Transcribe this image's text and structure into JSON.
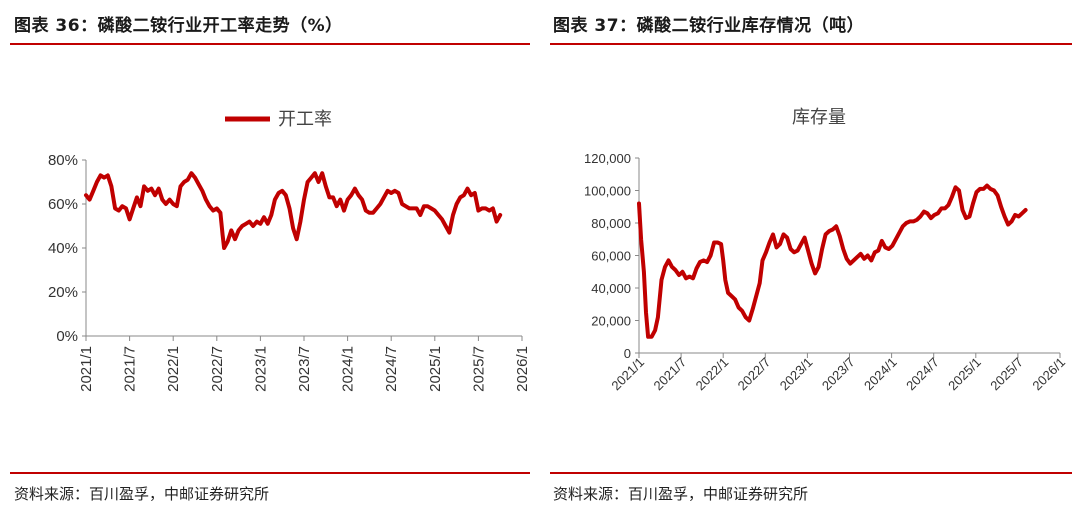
{
  "left_panel": {
    "title": "图表 36：磷酸二铵行业开工率走势（%）",
    "source": "资料来源：百川盈孚，中邮证券研究所"
  },
  "right_panel": {
    "title": "图表 37：磷酸二铵行业库存情况（吨）",
    "source": "资料来源：百川盈孚，中邮证券研究所"
  },
  "colors": {
    "accent": "#c00000",
    "line": "#c00000",
    "axis": "#888888"
  },
  "chart_data": [
    {
      "type": "line",
      "legend": "开工率",
      "legend_position": "top",
      "ylim": [
        0,
        0.8
      ],
      "yticks": [
        "0%",
        "20%",
        "40%",
        "60%",
        "80%"
      ],
      "xticks": [
        "2021/1",
        "2021/7",
        "2022/1",
        "2022/7",
        "2023/1",
        "2023/7",
        "2024/1",
        "2024/7",
        "2025/1",
        "2025/7",
        "2026/1"
      ],
      "x_range": [
        0,
        60
      ],
      "series": [
        {
          "name": "开工率",
          "points": [
            [
              0,
              0.64
            ],
            [
              0.5,
              0.62
            ],
            [
              1,
              0.66
            ],
            [
              1.5,
              0.7
            ],
            [
              2,
              0.73
            ],
            [
              2.5,
              0.72
            ],
            [
              3,
              0.73
            ],
            [
              3.5,
              0.68
            ],
            [
              4,
              0.58
            ],
            [
              4.5,
              0.57
            ],
            [
              5,
              0.59
            ],
            [
              5.5,
              0.58
            ],
            [
              6,
              0.53
            ],
            [
              6.5,
              0.58
            ],
            [
              7,
              0.63
            ],
            [
              7.5,
              0.59
            ],
            [
              8,
              0.68
            ],
            [
              8.5,
              0.66
            ],
            [
              9,
              0.67
            ],
            [
              9.5,
              0.64
            ],
            [
              10,
              0.67
            ],
            [
              10.5,
              0.62
            ],
            [
              11,
              0.6
            ],
            [
              11.5,
              0.62
            ],
            [
              12,
              0.6
            ],
            [
              12.5,
              0.59
            ],
            [
              13,
              0.68
            ],
            [
              13.5,
              0.7
            ],
            [
              14,
              0.71
            ],
            [
              14.5,
              0.74
            ],
            [
              15,
              0.72
            ],
            [
              15.5,
              0.69
            ],
            [
              16,
              0.66
            ],
            [
              16.5,
              0.62
            ],
            [
              17,
              0.59
            ],
            [
              17.5,
              0.57
            ],
            [
              18,
              0.58
            ],
            [
              18.5,
              0.56
            ],
            [
              18.8,
              0.46
            ],
            [
              19,
              0.4
            ],
            [
              19.5,
              0.43
            ],
            [
              20,
              0.48
            ],
            [
              20.5,
              0.44
            ],
            [
              21,
              0.48
            ],
            [
              21.5,
              0.5
            ],
            [
              22,
              0.51
            ],
            [
              22.5,
              0.52
            ],
            [
              23,
              0.5
            ],
            [
              23.5,
              0.52
            ],
            [
              24,
              0.51
            ],
            [
              24.5,
              0.54
            ],
            [
              25,
              0.51
            ],
            [
              25.5,
              0.55
            ],
            [
              26,
              0.62
            ],
            [
              26.5,
              0.65
            ],
            [
              27,
              0.66
            ],
            [
              27.5,
              0.64
            ],
            [
              28,
              0.58
            ],
            [
              28.5,
              0.49
            ],
            [
              29,
              0.44
            ],
            [
              29.5,
              0.52
            ],
            [
              30,
              0.62
            ],
            [
              30.5,
              0.7
            ],
            [
              31,
              0.72
            ],
            [
              31.5,
              0.74
            ],
            [
              32,
              0.7
            ],
            [
              32.5,
              0.74
            ],
            [
              33,
              0.68
            ],
            [
              33.5,
              0.63
            ],
            [
              34,
              0.63
            ],
            [
              34.5,
              0.59
            ],
            [
              35,
              0.62
            ],
            [
              35.5,
              0.57
            ],
            [
              36,
              0.62
            ],
            [
              36.5,
              0.64
            ],
            [
              37,
              0.67
            ],
            [
              37.5,
              0.64
            ],
            [
              38,
              0.62
            ],
            [
              38.5,
              0.57
            ],
            [
              39,
              0.56
            ],
            [
              39.5,
              0.56
            ],
            [
              40,
              0.58
            ],
            [
              40.5,
              0.6
            ],
            [
              41,
              0.63
            ],
            [
              41.5,
              0.66
            ],
            [
              42,
              0.65
            ],
            [
              42.5,
              0.66
            ],
            [
              43,
              0.65
            ],
            [
              43.5,
              0.6
            ],
            [
              44,
              0.59
            ],
            [
              44.5,
              0.58
            ],
            [
              45,
              0.58
            ],
            [
              45.5,
              0.58
            ],
            [
              46,
              0.55
            ],
            [
              46.5,
              0.59
            ],
            [
              47,
              0.59
            ],
            [
              47.5,
              0.58
            ],
            [
              48,
              0.57
            ],
            [
              48.5,
              0.55
            ],
            [
              49,
              0.53
            ],
            [
              49.5,
              0.5
            ],
            [
              50,
              0.47
            ],
            [
              50.5,
              0.55
            ],
            [
              51,
              0.6
            ],
            [
              51.5,
              0.63
            ],
            [
              52,
              0.64
            ],
            [
              52.5,
              0.67
            ],
            [
              53,
              0.64
            ],
            [
              53.5,
              0.65
            ],
            [
              54,
              0.57
            ],
            [
              54.5,
              0.58
            ],
            [
              55,
              0.58
            ],
            [
              55.5,
              0.57
            ],
            [
              56,
              0.58
            ],
            [
              56.5,
              0.52
            ],
            [
              57,
              0.55
            ]
          ]
        }
      ]
    },
    {
      "type": "line",
      "title": "库存量",
      "ylim": [
        0,
        120000
      ],
      "yticks": [
        "0",
        "20,000",
        "40,000",
        "60,000",
        "80,000",
        "100,000",
        "120,000"
      ],
      "xticks": [
        "2021/1",
        "2021/7",
        "2022/1",
        "2022/7",
        "2023/1",
        "2023/7",
        "2024/1",
        "2024/7",
        "2025/1",
        "2025/7",
        "2026/1"
      ],
      "x_range": [
        0,
        60
      ],
      "series": [
        {
          "name": "库存量",
          "points": [
            [
              0,
              92000
            ],
            [
              0.3,
              70000
            ],
            [
              0.7,
              50000
            ],
            [
              1,
              25000
            ],
            [
              1.3,
              10000
            ],
            [
              1.8,
              10000
            ],
            [
              2.3,
              14000
            ],
            [
              2.7,
              22000
            ],
            [
              3.2,
              45000
            ],
            [
              3.7,
              53000
            ],
            [
              4.2,
              57000
            ],
            [
              4.7,
              53000
            ],
            [
              5.2,
              51000
            ],
            [
              5.7,
              48000
            ],
            [
              6.2,
              50000
            ],
            [
              6.7,
              46000
            ],
            [
              7.2,
              47000
            ],
            [
              7.7,
              46000
            ],
            [
              8.2,
              52000
            ],
            [
              8.7,
              56000
            ],
            [
              9.2,
              57000
            ],
            [
              9.7,
              56000
            ],
            [
              10.2,
              60000
            ],
            [
              10.7,
              68000
            ],
            [
              11.2,
              68000
            ],
            [
              11.7,
              67000
            ],
            [
              12,
              57000
            ],
            [
              12.3,
              45000
            ],
            [
              12.7,
              37000
            ],
            [
              13.2,
              35000
            ],
            [
              13.7,
              33000
            ],
            [
              14.2,
              28000
            ],
            [
              14.7,
              26000
            ],
            [
              15.2,
              22000
            ],
            [
              15.7,
              20000
            ],
            [
              16.2,
              27000
            ],
            [
              16.7,
              35000
            ],
            [
              17.2,
              43000
            ],
            [
              17.6,
              57000
            ],
            [
              18.1,
              62000
            ],
            [
              18.6,
              68000
            ],
            [
              19.1,
              73000
            ],
            [
              19.6,
              65000
            ],
            [
              20.1,
              67000
            ],
            [
              20.6,
              73000
            ],
            [
              21.1,
              71000
            ],
            [
              21.6,
              64000
            ],
            [
              22.1,
              62000
            ],
            [
              22.6,
              63000
            ],
            [
              23.1,
              67000
            ],
            [
              23.6,
              71000
            ],
            [
              24.1,
              63000
            ],
            [
              24.6,
              55000
            ],
            [
              25.1,
              49000
            ],
            [
              25.6,
              53000
            ],
            [
              26.1,
              64000
            ],
            [
              26.6,
              73000
            ],
            [
              27.1,
              75000
            ],
            [
              27.6,
              76000
            ],
            [
              28.1,
              78000
            ],
            [
              28.6,
              72000
            ],
            [
              29.1,
              64000
            ],
            [
              29.6,
              58000
            ],
            [
              30.1,
              55000
            ],
            [
              30.6,
              57000
            ],
            [
              31.1,
              59000
            ],
            [
              31.6,
              61000
            ],
            [
              32.1,
              58000
            ],
            [
              32.6,
              60000
            ],
            [
              33.1,
              57000
            ],
            [
              33.6,
              62000
            ],
            [
              34.1,
              63000
            ],
            [
              34.6,
              69000
            ],
            [
              35.1,
              65000
            ],
            [
              35.6,
              64000
            ],
            [
              36.1,
              66000
            ],
            [
              36.6,
              70000
            ],
            [
              37.1,
              74000
            ],
            [
              37.6,
              78000
            ],
            [
              38.1,
              80000
            ],
            [
              38.6,
              81000
            ],
            [
              39.1,
              81000
            ],
            [
              39.6,
              82000
            ],
            [
              40.1,
              84000
            ],
            [
              40.6,
              87000
            ],
            [
              41.1,
              86000
            ],
            [
              41.6,
              83000
            ],
            [
              42.1,
              85000
            ],
            [
              42.6,
              86000
            ],
            [
              43.1,
              89000
            ],
            [
              43.6,
              89000
            ],
            [
              44.1,
              91000
            ],
            [
              44.6,
              96000
            ],
            [
              45.1,
              102000
            ],
            [
              45.6,
              100000
            ],
            [
              46.1,
              88000
            ],
            [
              46.6,
              83000
            ],
            [
              47.1,
              84000
            ],
            [
              47.6,
              92000
            ],
            [
              48.1,
              99000
            ],
            [
              48.6,
              101000
            ],
            [
              49.1,
              101000
            ],
            [
              49.6,
              103000
            ],
            [
              50.1,
              101000
            ],
            [
              50.6,
              100000
            ],
            [
              51.1,
              97000
            ],
            [
              51.6,
              90000
            ],
            [
              52.1,
              84000
            ],
            [
              52.6,
              79000
            ],
            [
              53.1,
              81000
            ],
            [
              53.6,
              85000
            ],
            [
              54.1,
              84000
            ],
            [
              54.6,
              86000
            ],
            [
              55.1,
              88000
            ]
          ]
        }
      ]
    }
  ]
}
